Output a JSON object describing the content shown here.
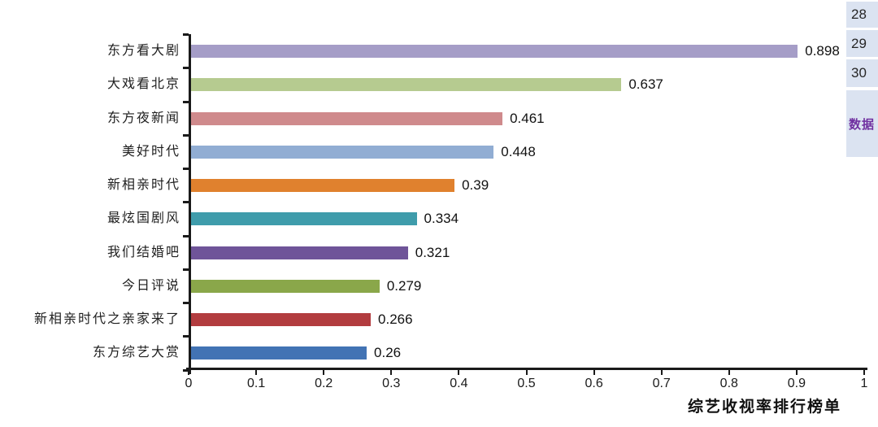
{
  "chart_data": {
    "type": "bar",
    "orientation": "horizontal",
    "title": "",
    "xlabel": "综艺收视率排行榜单",
    "categories": [
      "东方看大剧",
      "大戏看北京",
      "东方夜新闻",
      "美好时代",
      "新相亲时代",
      "最炫国剧风",
      "我们结婚吧",
      "今日评说",
      "新相亲时代之亲家来了",
      "东方综艺大赏"
    ],
    "values": [
      0.898,
      0.637,
      0.461,
      0.448,
      0.39,
      0.334,
      0.321,
      0.279,
      0.266,
      0.26
    ],
    "value_labels": [
      "0.898",
      "0.637",
      "0.461",
      "0.448",
      "0.39",
      "0.334",
      "0.321",
      "0.279",
      "0.266",
      "0.26"
    ],
    "bar_colors": [
      "#a59dc7",
      "#b6cb90",
      "#cf8a8c",
      "#91add3",
      "#e0812e",
      "#3f9cab",
      "#6f5499",
      "#8aa74a",
      "#b23c3f",
      "#4273b4"
    ],
    "xlim": [
      0,
      1
    ],
    "x_ticks": [
      "0",
      "0.1",
      "0.2",
      "0.3",
      "0.4",
      "0.5",
      "0.6",
      "0.7",
      "0.8",
      "0.9",
      "1"
    ],
    "grid": false,
    "legend": null,
    "axis_color": "#1a1a1a"
  },
  "side_panel": {
    "row_numbers": [
      "28",
      "29",
      "30"
    ],
    "cell_label": "数据",
    "bg_color": "#dbe3f1",
    "label_color": "#7030a0"
  }
}
